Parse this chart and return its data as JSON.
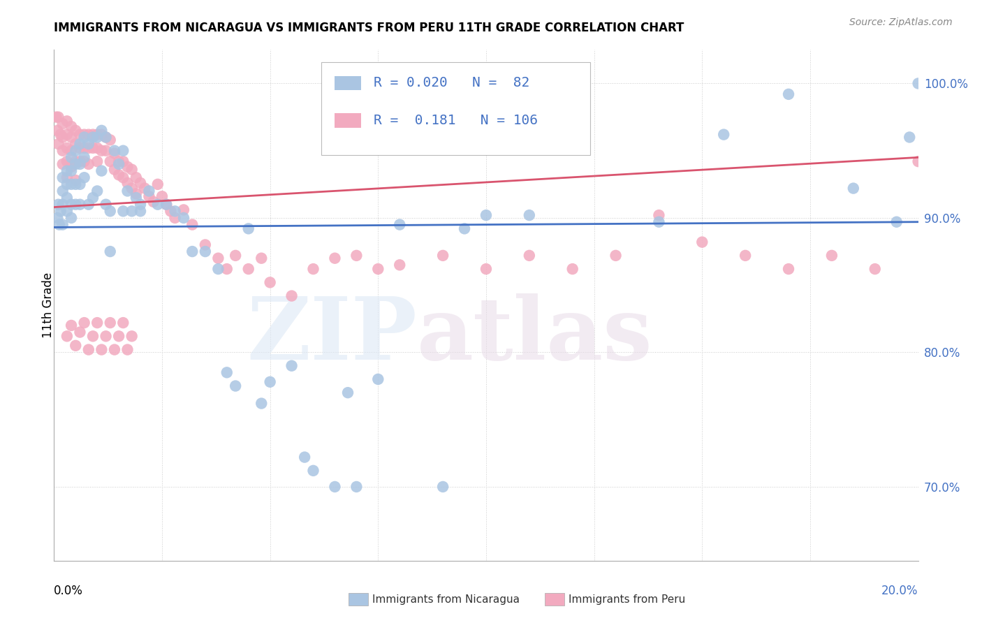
{
  "title": "IMMIGRANTS FROM NICARAGUA VS IMMIGRANTS FROM PERU 11TH GRADE CORRELATION CHART",
  "source": "Source: ZipAtlas.com",
  "ylabel": "11th Grade",
  "xmin": 0.0,
  "xmax": 0.2,
  "ymin": 0.645,
  "ymax": 1.025,
  "ytick_values": [
    0.7,
    0.8,
    0.9,
    1.0
  ],
  "ytick_labels": [
    "70.0%",
    "80.0%",
    "90.0%",
    "100.0%"
  ],
  "legend_r_nicaragua": "0.020",
  "legend_n_nicaragua": "82",
  "legend_r_peru": "0.181",
  "legend_n_peru": "106",
  "color_nicaragua": "#aac5e2",
  "color_peru": "#f2aabf",
  "color_line_nicaragua": "#4472c4",
  "color_line_peru": "#d9546e",
  "nic_trendline_x": [
    0.0,
    0.2
  ],
  "nic_trendline_y": [
    0.893,
    0.897
  ],
  "peru_trendline_x": [
    0.0,
    0.2
  ],
  "peru_trendline_y": [
    0.908,
    0.945
  ],
  "nic_scatter_x": [
    0.0008,
    0.001,
    0.0012,
    0.0015,
    0.002,
    0.002,
    0.002,
    0.002,
    0.003,
    0.003,
    0.003,
    0.003,
    0.004,
    0.004,
    0.004,
    0.004,
    0.004,
    0.005,
    0.005,
    0.005,
    0.005,
    0.006,
    0.006,
    0.006,
    0.006,
    0.007,
    0.007,
    0.007,
    0.008,
    0.008,
    0.009,
    0.009,
    0.01,
    0.01,
    0.011,
    0.011,
    0.012,
    0.012,
    0.013,
    0.014,
    0.015,
    0.016,
    0.016,
    0.017,
    0.018,
    0.019,
    0.02,
    0.022,
    0.024,
    0.026,
    0.028,
    0.03,
    0.032,
    0.035,
    0.038,
    0.04,
    0.042,
    0.045,
    0.048,
    0.05,
    0.055,
    0.058,
    0.06,
    0.065,
    0.068,
    0.07,
    0.075,
    0.08,
    0.09,
    0.095,
    0.1,
    0.105,
    0.11,
    0.14,
    0.155,
    0.17,
    0.185,
    0.195,
    0.198,
    0.2,
    0.013,
    0.02
  ],
  "nic_scatter_y": [
    0.9,
    0.91,
    0.895,
    0.905,
    0.93,
    0.92,
    0.91,
    0.895,
    0.935,
    0.925,
    0.915,
    0.905,
    0.945,
    0.935,
    0.925,
    0.91,
    0.9,
    0.95,
    0.94,
    0.925,
    0.91,
    0.955,
    0.94,
    0.925,
    0.91,
    0.96,
    0.945,
    0.93,
    0.955,
    0.91,
    0.96,
    0.915,
    0.96,
    0.92,
    0.965,
    0.935,
    0.96,
    0.91,
    0.905,
    0.95,
    0.94,
    0.95,
    0.905,
    0.92,
    0.905,
    0.915,
    0.91,
    0.92,
    0.91,
    0.91,
    0.905,
    0.9,
    0.875,
    0.875,
    0.862,
    0.785,
    0.775,
    0.892,
    0.762,
    0.778,
    0.79,
    0.722,
    0.712,
    0.7,
    0.77,
    0.7,
    0.78,
    0.895,
    0.7,
    0.892,
    0.902,
    0.97,
    0.902,
    0.897,
    0.962,
    0.992,
    0.922,
    0.897,
    0.96,
    1.0,
    0.875,
    0.905
  ],
  "peru_scatter_x": [
    0.0005,
    0.0008,
    0.001,
    0.001,
    0.0015,
    0.002,
    0.002,
    0.002,
    0.002,
    0.003,
    0.003,
    0.003,
    0.003,
    0.003,
    0.004,
    0.004,
    0.004,
    0.004,
    0.005,
    0.005,
    0.005,
    0.005,
    0.006,
    0.006,
    0.006,
    0.007,
    0.007,
    0.007,
    0.008,
    0.008,
    0.008,
    0.009,
    0.009,
    0.01,
    0.01,
    0.01,
    0.011,
    0.011,
    0.012,
    0.012,
    0.013,
    0.013,
    0.014,
    0.014,
    0.015,
    0.015,
    0.016,
    0.016,
    0.017,
    0.017,
    0.018,
    0.018,
    0.019,
    0.019,
    0.02,
    0.021,
    0.022,
    0.023,
    0.024,
    0.025,
    0.026,
    0.027,
    0.028,
    0.03,
    0.032,
    0.035,
    0.038,
    0.04,
    0.042,
    0.045,
    0.048,
    0.05,
    0.055,
    0.06,
    0.065,
    0.07,
    0.075,
    0.08,
    0.09,
    0.1,
    0.11,
    0.12,
    0.13,
    0.14,
    0.15,
    0.16,
    0.17,
    0.18,
    0.19,
    0.2,
    0.003,
    0.004,
    0.005,
    0.006,
    0.007,
    0.008,
    0.009,
    0.01,
    0.011,
    0.012,
    0.013,
    0.014,
    0.015,
    0.016,
    0.017,
    0.018
  ],
  "peru_scatter_y": [
    0.975,
    0.965,
    0.975,
    0.955,
    0.962,
    0.97,
    0.96,
    0.95,
    0.94,
    0.972,
    0.962,
    0.952,
    0.942,
    0.93,
    0.968,
    0.96,
    0.95,
    0.938,
    0.965,
    0.955,
    0.942,
    0.928,
    0.962,
    0.952,
    0.942,
    0.962,
    0.952,
    0.942,
    0.962,
    0.952,
    0.94,
    0.962,
    0.952,
    0.962,
    0.952,
    0.942,
    0.962,
    0.95,
    0.96,
    0.95,
    0.958,
    0.942,
    0.948,
    0.936,
    0.942,
    0.932,
    0.942,
    0.93,
    0.938,
    0.926,
    0.936,
    0.922,
    0.93,
    0.918,
    0.926,
    0.922,
    0.916,
    0.912,
    0.925,
    0.916,
    0.91,
    0.905,
    0.9,
    0.906,
    0.895,
    0.88,
    0.87,
    0.862,
    0.872,
    0.862,
    0.87,
    0.852,
    0.842,
    0.862,
    0.87,
    0.872,
    0.862,
    0.865,
    0.872,
    0.862,
    0.872,
    0.862,
    0.872,
    0.902,
    0.882,
    0.872,
    0.862,
    0.872,
    0.862,
    0.942,
    0.812,
    0.82,
    0.805,
    0.815,
    0.822,
    0.802,
    0.812,
    0.822,
    0.802,
    0.812,
    0.822,
    0.802,
    0.812,
    0.822,
    0.802,
    0.812
  ]
}
